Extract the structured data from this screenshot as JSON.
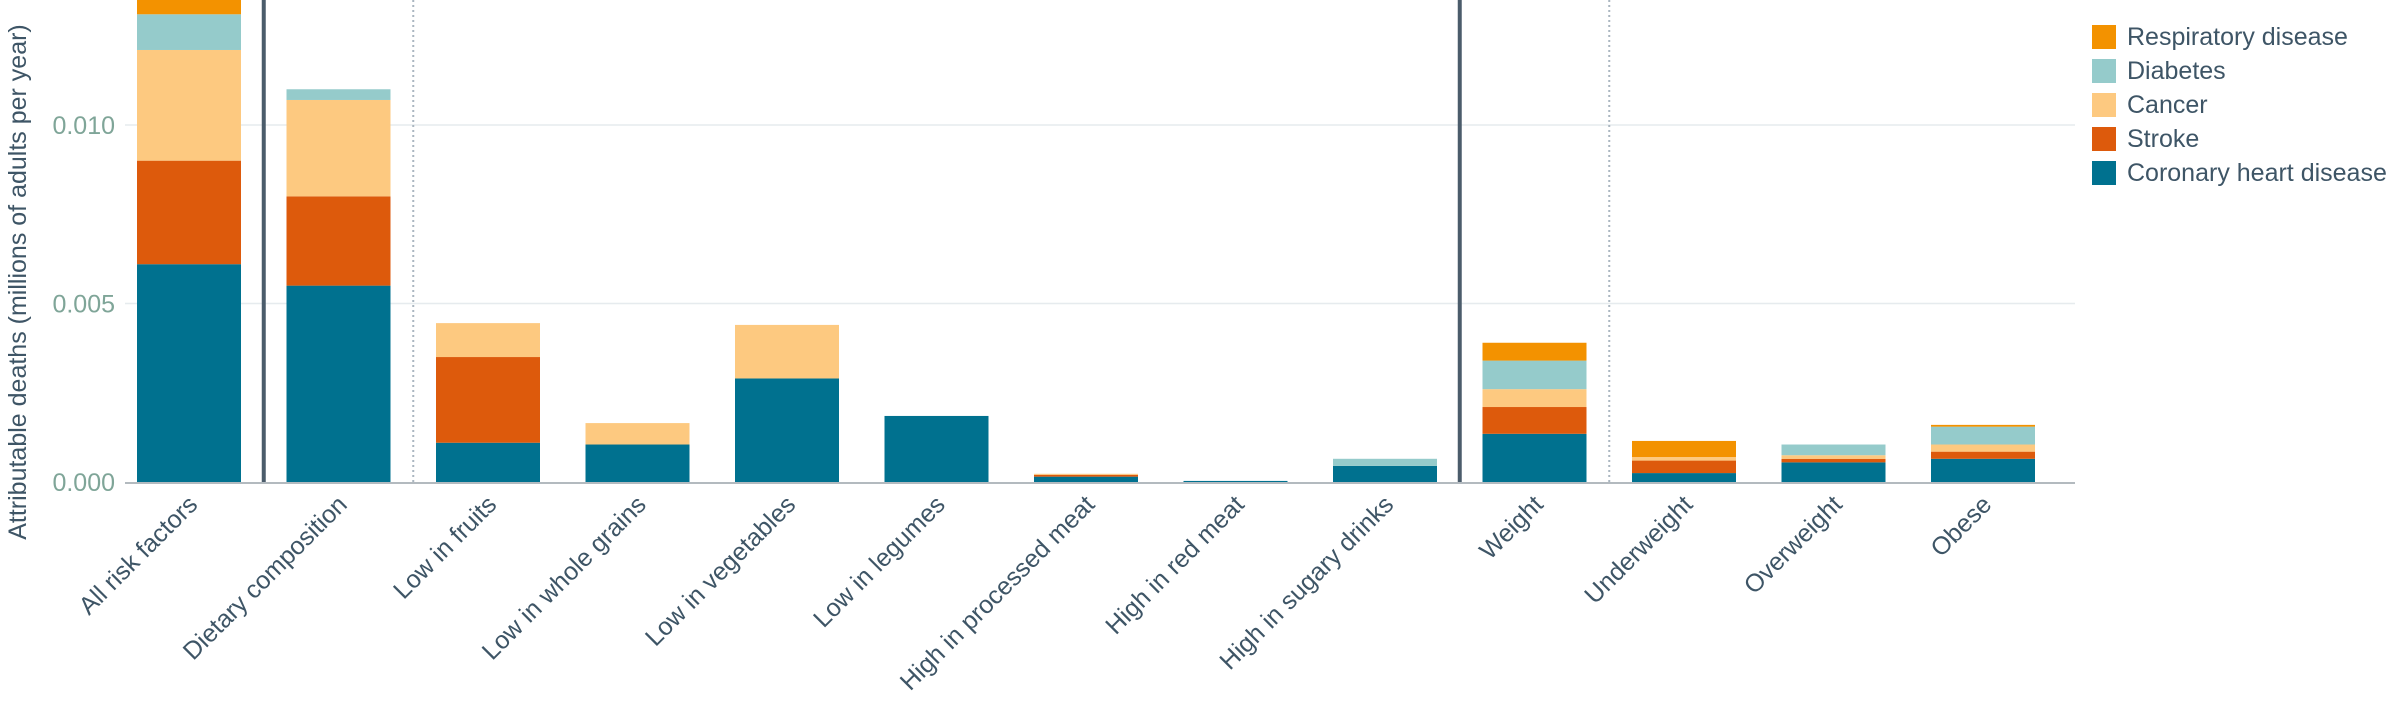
{
  "chart_data": {
    "type": "bar",
    "stacked": true,
    "ylabel": "Attributable deaths (millions of adults per year)",
    "xlabel": "",
    "ylim": [
      0,
      0.0135
    ],
    "yticks": [
      0,
      0.005,
      0.01
    ],
    "ytick_labels": [
      "0.000",
      "0.005",
      "0.010"
    ],
    "grid": true,
    "legend_position": "top-right",
    "categories": [
      "All risk factors",
      "Dietary composition",
      "Low in fruits",
      "Low in whole grains",
      "Low in vegetables",
      "Low in legumes",
      "High in processed meat",
      "High in red meat",
      "High in sugary drinks",
      "Weight",
      "Underweight",
      "Overweight",
      "Obese"
    ],
    "series": [
      {
        "name": "Coronary heart disease",
        "color": "#00718f",
        "values": [
          0.0061,
          0.0055,
          0.0011,
          0.00105,
          0.0029,
          0.00185,
          0.00015,
          3e-05,
          0.00045,
          0.00135,
          0.00025,
          0.00055,
          0.00065
        ]
      },
      {
        "name": "Stroke",
        "color": "#dd5a0c",
        "values": [
          0.0029,
          0.0025,
          0.0024,
          0.0,
          0.0,
          0.0,
          5e-05,
          0.0,
          0.0,
          0.00075,
          0.00035,
          0.0001,
          0.0002
        ]
      },
      {
        "name": "Cancer",
        "color": "#fdc980",
        "values": [
          0.0031,
          0.0027,
          0.00095,
          0.0006,
          0.0015,
          0.0,
          3e-05,
          0.0,
          0.0,
          0.0005,
          0.0001,
          0.0001,
          0.0002
        ]
      },
      {
        "name": "Diabetes",
        "color": "#95cbcb",
        "values": [
          0.001,
          0.0003,
          0.0,
          0.0,
          0.0,
          0.0,
          0.0,
          0.0,
          0.0002,
          0.0008,
          0.0,
          0.0003,
          0.0005
        ]
      },
      {
        "name": "Respiratory disease",
        "color": "#f39200",
        "values": [
          0.0005,
          0.0,
          0.0,
          0.0,
          0.0,
          0.0,
          0.0,
          0.0,
          0.0,
          0.0005,
          0.00045,
          0.0,
          5e-05
        ]
      }
    ],
    "group_separators": [
      {
        "after_index": 0,
        "style": "solid"
      },
      {
        "after_index": 1,
        "style": "dotted"
      },
      {
        "after_index": 8,
        "style": "solid"
      },
      {
        "after_index": 9,
        "style": "dotted"
      }
    ],
    "legend_order": [
      "Respiratory disease",
      "Diabetes",
      "Cancer",
      "Stroke",
      "Coronary heart disease"
    ]
  },
  "colors": {
    "axis_text": "#3e5566",
    "tick_text": "#7fa598",
    "grid": "#e6ebee",
    "axis_line": "#9aa3aa",
    "separator": "#4b5c6b"
  }
}
